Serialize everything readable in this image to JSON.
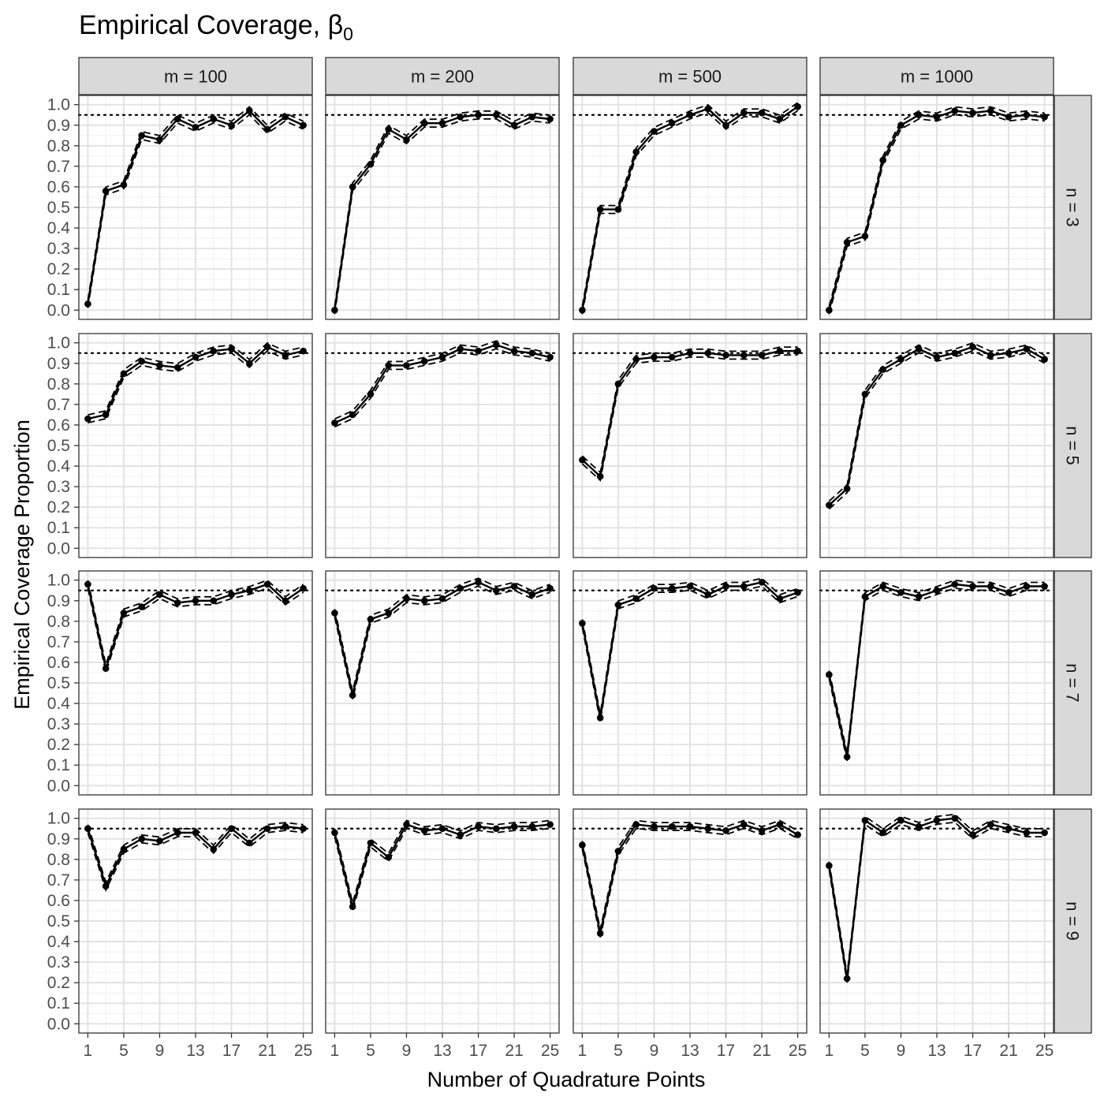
{
  "chart_data": {
    "type": "line",
    "title": "Empirical Coverage, ",
    "title_symbol": "β",
    "title_subscript": "0",
    "xlabel": "Number of Quadrature Points",
    "ylabel": "Empirical Coverage Proportion",
    "x": [
      1,
      3,
      5,
      7,
      9,
      11,
      13,
      15,
      17,
      19,
      21,
      23,
      25
    ],
    "x_ticks": [
      1,
      5,
      9,
      13,
      17,
      21,
      25
    ],
    "y_ticks": [
      0.0,
      0.1,
      0.2,
      0.3,
      0.4,
      0.5,
      0.6,
      0.7,
      0.8,
      0.9,
      1.0
    ],
    "y_tick_labels": [
      "0.0",
      "0.1",
      "0.2",
      "0.3",
      "0.4",
      "0.5",
      "0.6",
      "0.7",
      "0.8",
      "0.9",
      "1.0"
    ],
    "xlim": [
      0,
      26
    ],
    "ylim": [
      -0.045,
      1.045
    ],
    "reference_line": 0.95,
    "grid": true,
    "columns": [
      "m = 100",
      "m = 200",
      "m = 500",
      "m = 1000"
    ],
    "rows": [
      "n = 3",
      "n = 5",
      "n = 7",
      "n = 9"
    ],
    "panels": [
      [
        {
          "values": [
            0.03,
            0.58,
            0.61,
            0.85,
            0.83,
            0.93,
            0.89,
            0.93,
            0.9,
            0.97,
            0.88,
            0.94,
            0.9
          ]
        },
        {
          "values": [
            0.0,
            0.6,
            0.71,
            0.88,
            0.83,
            0.91,
            0.91,
            0.94,
            0.95,
            0.95,
            0.9,
            0.94,
            0.93
          ]
        },
        {
          "values": [
            0.0,
            0.49,
            0.49,
            0.77,
            0.87,
            0.91,
            0.95,
            0.98,
            0.9,
            0.96,
            0.96,
            0.93,
            0.99
          ]
        },
        {
          "values": [
            0.0,
            0.33,
            0.36,
            0.73,
            0.9,
            0.95,
            0.94,
            0.97,
            0.96,
            0.97,
            0.94,
            0.95,
            0.94
          ]
        }
      ],
      [
        {
          "values": [
            0.63,
            0.65,
            0.85,
            0.91,
            0.89,
            0.88,
            0.93,
            0.96,
            0.97,
            0.9,
            0.98,
            0.94,
            0.96
          ]
        },
        {
          "values": [
            0.61,
            0.65,
            0.75,
            0.89,
            0.89,
            0.91,
            0.93,
            0.97,
            0.96,
            0.99,
            0.96,
            0.95,
            0.93
          ]
        },
        {
          "values": [
            0.43,
            0.35,
            0.8,
            0.92,
            0.93,
            0.93,
            0.95,
            0.95,
            0.94,
            0.94,
            0.94,
            0.96,
            0.96
          ]
        },
        {
          "values": [
            0.21,
            0.29,
            0.75,
            0.87,
            0.92,
            0.97,
            0.93,
            0.95,
            0.98,
            0.94,
            0.95,
            0.97,
            0.92
          ]
        }
      ],
      [
        {
          "values": [
            0.98,
            0.57,
            0.84,
            0.87,
            0.93,
            0.89,
            0.9,
            0.9,
            0.93,
            0.95,
            0.98,
            0.9,
            0.96
          ]
        },
        {
          "values": [
            0.84,
            0.44,
            0.81,
            0.84,
            0.91,
            0.9,
            0.91,
            0.96,
            0.99,
            0.95,
            0.97,
            0.93,
            0.96
          ]
        },
        {
          "values": [
            0.79,
            0.33,
            0.88,
            0.91,
            0.96,
            0.96,
            0.97,
            0.93,
            0.97,
            0.97,
            0.99,
            0.91,
            0.94
          ]
        },
        {
          "values": [
            0.54,
            0.14,
            0.92,
            0.97,
            0.94,
            0.92,
            0.95,
            0.98,
            0.97,
            0.97,
            0.94,
            0.97,
            0.97
          ]
        }
      ],
      [
        {
          "values": [
            0.95,
            0.67,
            0.85,
            0.9,
            0.89,
            0.93,
            0.93,
            0.85,
            0.95,
            0.88,
            0.95,
            0.96,
            0.95
          ]
        },
        {
          "values": [
            0.93,
            0.57,
            0.88,
            0.81,
            0.97,
            0.94,
            0.95,
            0.92,
            0.96,
            0.95,
            0.96,
            0.96,
            0.97
          ]
        },
        {
          "values": [
            0.87,
            0.44,
            0.84,
            0.97,
            0.96,
            0.96,
            0.96,
            0.95,
            0.94,
            0.97,
            0.94,
            0.97,
            0.92
          ]
        },
        {
          "values": [
            0.77,
            0.22,
            0.99,
            0.93,
            0.99,
            0.96,
            0.99,
            1.0,
            0.92,
            0.97,
            0.95,
            0.93,
            0.93
          ]
        }
      ]
    ]
  }
}
